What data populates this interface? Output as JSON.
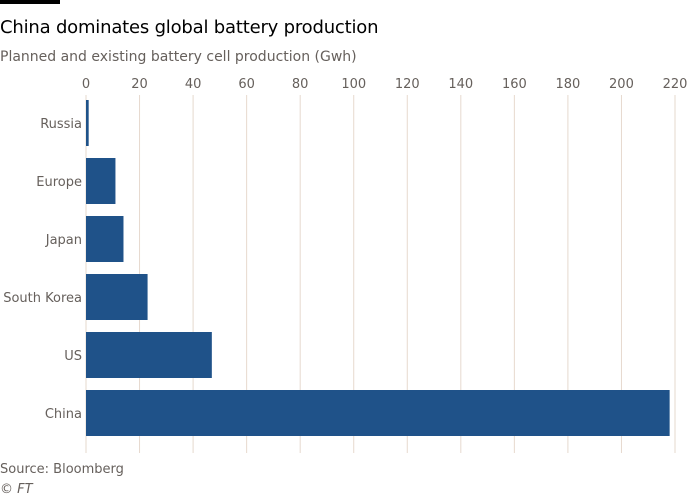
{
  "chart_data": {
    "type": "bar",
    "orientation": "horizontal",
    "title": "China dominates global battery production",
    "subtitle": "Planned and existing battery cell production (Gwh)",
    "categories": [
      "Russia",
      "Europe",
      "Japan",
      "South Korea",
      "US",
      "China"
    ],
    "values": [
      1,
      11,
      14,
      23,
      47,
      218
    ],
    "xlabel": "",
    "ylabel": "",
    "xlim": [
      0,
      220
    ],
    "xticks": [
      0,
      20,
      40,
      60,
      80,
      100,
      120,
      140,
      160,
      180,
      200,
      220
    ],
    "grid": true,
    "tick_position": "top",
    "bar_color": "#1f5289",
    "grid_color": "#e6d9ce"
  },
  "footer": {
    "source": "Source: Bloomberg",
    "copyright": "© FT"
  }
}
